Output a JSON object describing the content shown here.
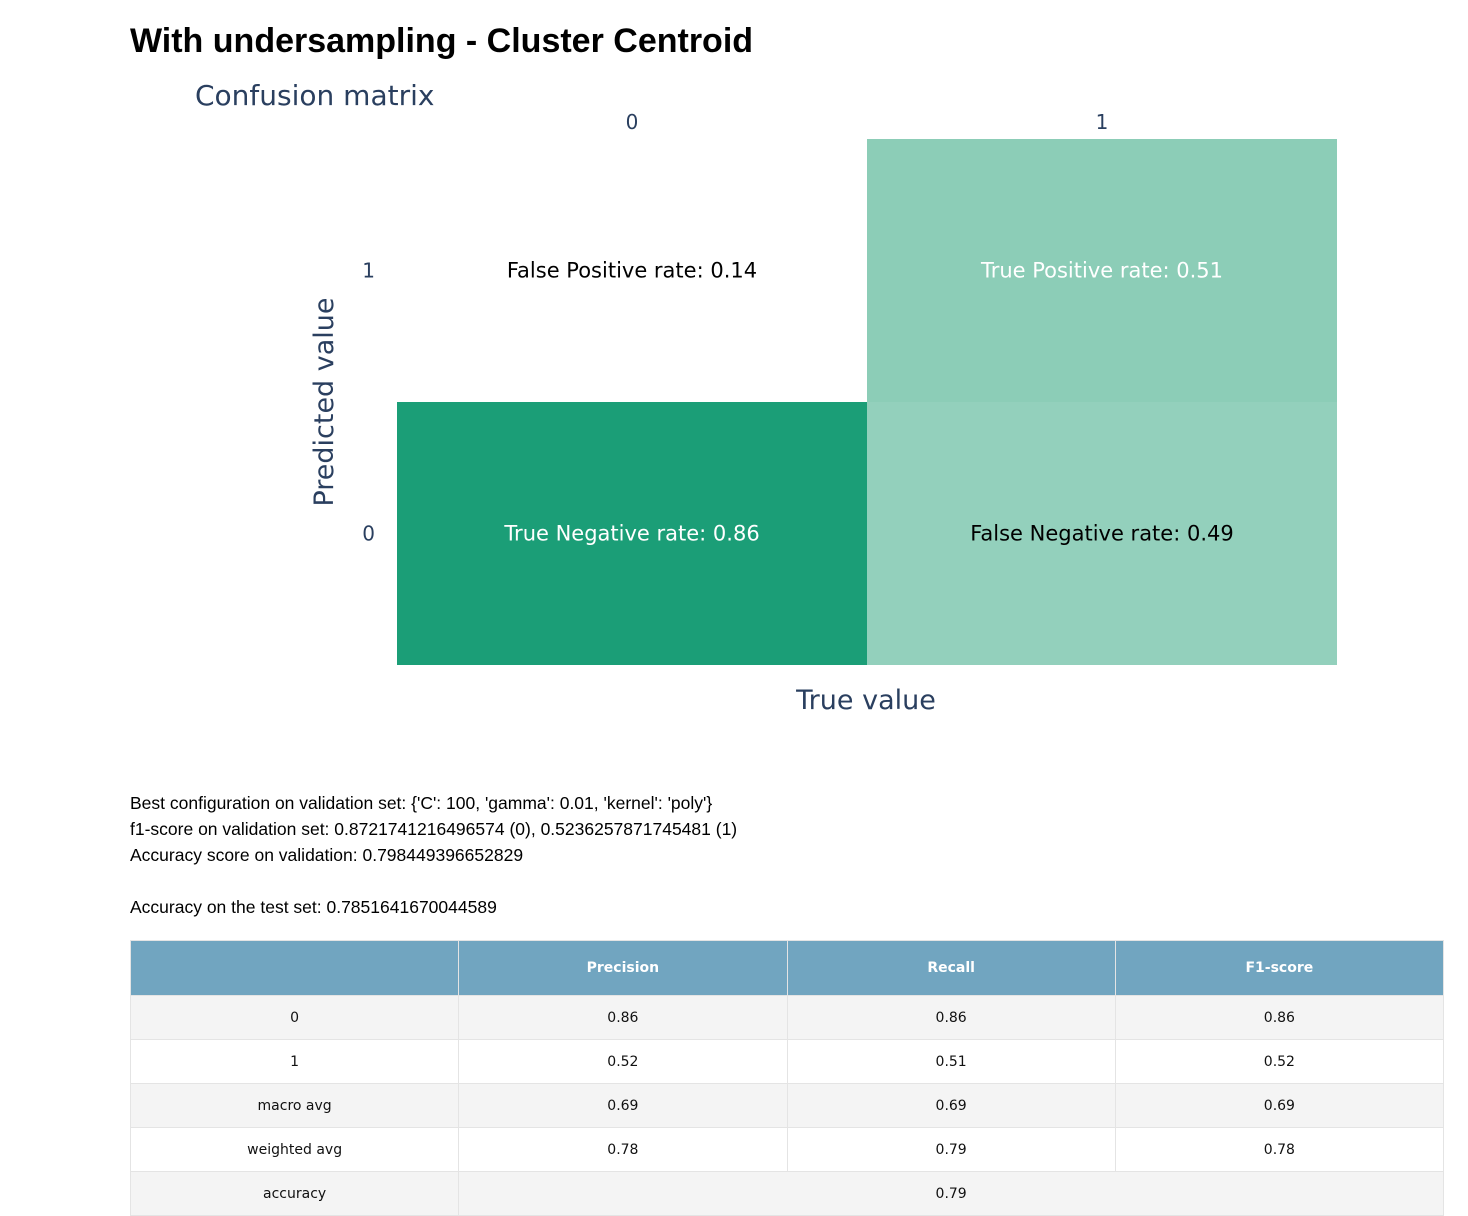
{
  "page": {
    "title": "With undersampling - Cluster Centroid"
  },
  "chart_data": {
    "type": "heatmap",
    "title": "Confusion matrix",
    "xlabel": "True value",
    "ylabel": "Predicted value",
    "x": [
      "0",
      "1"
    ],
    "y": [
      "1",
      "0"
    ],
    "cells": [
      {
        "true": "0",
        "predicted": "1",
        "value": 0.14,
        "label": "False Positive rate: 0.14",
        "color": "#ffffff",
        "text_color": "#000000"
      },
      {
        "true": "1",
        "predicted": "1",
        "value": 0.51,
        "label": "True Positive rate: 0.51",
        "color": "#8ccdb7",
        "text_color": "#ffffff"
      },
      {
        "true": "0",
        "predicted": "0",
        "value": 0.86,
        "label": "True Negative rate: 0.86",
        "color": "#1b9e77",
        "text_color": "#ffffff"
      },
      {
        "true": "1",
        "predicted": "0",
        "value": 0.49,
        "label": "False Negative rate: 0.49",
        "color": "#93d0bc",
        "text_color": "#000000"
      }
    ],
    "colors": {
      "axis_text": "#2a3f5f"
    }
  },
  "info": {
    "best_config": "Best configuration on validation set: {'C': 100, 'gamma': 0.01, 'kernel': 'poly'}",
    "f1_validation": "f1-score on validation set: 0.8721741216496574 (0), 0.5236257871745481 (1)",
    "accuracy_validation": "Accuracy score on validation: 0.798449396652829",
    "accuracy_test": "Accuracy on the test set: 0.7851641670044589"
  },
  "report_table": {
    "headers": [
      "",
      "Precision",
      "Recall",
      "F1-score"
    ],
    "rows": [
      {
        "label": "0",
        "precision": "0.86",
        "recall": "0.86",
        "f1": "0.86"
      },
      {
        "label": "1",
        "precision": "0.52",
        "recall": "0.51",
        "f1": "0.52"
      },
      {
        "label": "macro avg",
        "precision": "0.69",
        "recall": "0.69",
        "f1": "0.69"
      },
      {
        "label": "weighted avg",
        "precision": "0.78",
        "recall": "0.79",
        "f1": "0.78"
      }
    ],
    "accuracy_row": {
      "label": "accuracy",
      "value": "0.79"
    },
    "colors": {
      "header_bg": "#71a5c0",
      "header_text": "#ffffff",
      "odd_row": "#f4f4f4",
      "even_row": "#ffffff"
    }
  }
}
